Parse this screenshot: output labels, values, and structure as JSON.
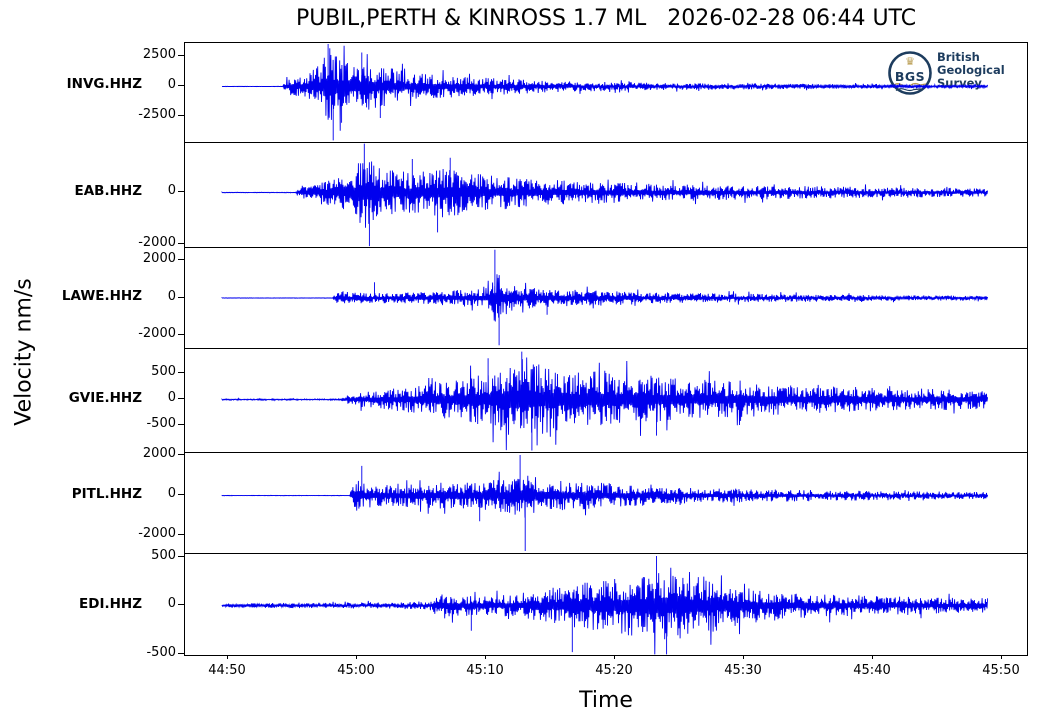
{
  "title": "PUBIL,PERTH & KINROSS 1.7 ML   2026-02-28 06:44 UTC",
  "logo": {
    "circle_abbr": "BGS",
    "lines": [
      "British",
      "Geological",
      "Survey"
    ],
    "navy": "#1d3c5e",
    "gold": "#b99c50"
  },
  "chart_data": {
    "type": "line",
    "title": "PUBIL,PERTH & KINROSS 1.7 ML   2026-02-28 06:44 UTC",
    "xlabel": "Time",
    "ylabel": "Velocity nm/s",
    "x_ticks": [
      "44:50",
      "45:00",
      "45:10",
      "45:20",
      "45:30",
      "45:40",
      "45:50"
    ],
    "grid": false,
    "trace_color": "#0000ee",
    "series": [
      {
        "name": "INVG.HHZ",
        "y_ticks": [
          2500,
          0,
          -2500
        ],
        "ylim": [
          -4580,
          3580
        ],
        "envelope": [
          [
            0.044,
            15
          ],
          [
            0.115,
            15
          ],
          [
            0.122,
            700
          ],
          [
            0.13,
            1100
          ],
          [
            0.14,
            900
          ],
          [
            0.15,
            1300
          ],
          [
            0.165,
            2000
          ],
          [
            0.172,
            3400
          ],
          [
            0.182,
            2600
          ],
          [
            0.2,
            2000
          ],
          [
            0.22,
            2100
          ],
          [
            0.245,
            1500
          ],
          [
            0.27,
            1100
          ],
          [
            0.3,
            950
          ],
          [
            0.34,
            800
          ],
          [
            0.4,
            600
          ],
          [
            0.47,
            420
          ],
          [
            0.55,
            320
          ],
          [
            0.65,
            260
          ],
          [
            0.75,
            210
          ],
          [
            0.85,
            170
          ],
          [
            0.954,
            140
          ]
        ],
        "spikes": [
          [
            0.17,
            3500
          ],
          [
            0.176,
            -4450
          ],
          [
            0.186,
            -3000
          ],
          [
            0.21,
            2800
          ],
          [
            0.232,
            -2600
          ]
        ]
      },
      {
        "name": "EAB.HHZ",
        "y_ticks": [
          0,
          -2000
        ],
        "ylim": [
          -2115,
          1923
        ],
        "envelope": [
          [
            0.044,
            12
          ],
          [
            0.13,
            12
          ],
          [
            0.14,
            350
          ],
          [
            0.16,
            450
          ],
          [
            0.18,
            600
          ],
          [
            0.2,
            900
          ],
          [
            0.212,
            1500
          ],
          [
            0.225,
            1100
          ],
          [
            0.25,
            850
          ],
          [
            0.28,
            800
          ],
          [
            0.31,
            1000
          ],
          [
            0.34,
            750
          ],
          [
            0.38,
            600
          ],
          [
            0.43,
            500
          ],
          [
            0.5,
            400
          ],
          [
            0.58,
            330
          ],
          [
            0.68,
            270
          ],
          [
            0.8,
            220
          ],
          [
            0.9,
            180
          ],
          [
            0.954,
            160
          ]
        ],
        "spikes": [
          [
            0.213,
            1900
          ],
          [
            0.219,
            -2080
          ],
          [
            0.27,
            1300
          ],
          [
            0.3,
            -1550
          ],
          [
            0.315,
            1350
          ]
        ]
      },
      {
        "name": "LAWE.HHZ",
        "y_ticks": [
          2000,
          0,
          -2000
        ],
        "ylim": [
          -2693,
          2693
        ],
        "envelope": [
          [
            0.044,
            10
          ],
          [
            0.175,
            10
          ],
          [
            0.182,
            420
          ],
          [
            0.2,
            300
          ],
          [
            0.22,
            280
          ],
          [
            0.25,
            300
          ],
          [
            0.28,
            320
          ],
          [
            0.31,
            400
          ],
          [
            0.345,
            480
          ],
          [
            0.362,
            700
          ],
          [
            0.37,
            1600
          ],
          [
            0.38,
            900
          ],
          [
            0.4,
            600
          ],
          [
            0.44,
            480
          ],
          [
            0.5,
            400
          ],
          [
            0.58,
            300
          ],
          [
            0.68,
            230
          ],
          [
            0.8,
            170
          ],
          [
            0.954,
            120
          ]
        ],
        "spikes": [
          [
            0.368,
            2600
          ],
          [
            0.373,
            -2550
          ],
          [
            0.225,
            850
          ],
          [
            0.43,
            -900
          ]
        ]
      },
      {
        "name": "GVIE.HHZ",
        "y_ticks": [
          500,
          0,
          -500
        ],
        "ylim": [
          -1019,
          981
        ],
        "envelope": [
          [
            0.044,
            14
          ],
          [
            0.185,
            14
          ],
          [
            0.195,
            130
          ],
          [
            0.22,
            170
          ],
          [
            0.25,
            220
          ],
          [
            0.285,
            330
          ],
          [
            0.32,
            400
          ],
          [
            0.355,
            500
          ],
          [
            0.385,
            700
          ],
          [
            0.405,
            850
          ],
          [
            0.43,
            650
          ],
          [
            0.46,
            520
          ],
          [
            0.5,
            560
          ],
          [
            0.545,
            480
          ],
          [
            0.59,
            420
          ],
          [
            0.64,
            360
          ],
          [
            0.7,
            300
          ],
          [
            0.77,
            260
          ],
          [
            0.85,
            220
          ],
          [
            0.954,
            190
          ]
        ],
        "spikes": [
          [
            0.4,
            930
          ],
          [
            0.412,
            -990
          ],
          [
            0.36,
            800
          ],
          [
            0.56,
            -700
          ]
        ]
      },
      {
        "name": "PITL.HHZ",
        "y_ticks": [
          2000,
          0,
          -2000
        ],
        "ylim": [
          -2900,
          2150
        ],
        "envelope": [
          [
            0.044,
            10
          ],
          [
            0.195,
            10
          ],
          [
            0.202,
            850
          ],
          [
            0.215,
            650
          ],
          [
            0.24,
            550
          ],
          [
            0.27,
            600
          ],
          [
            0.3,
            650
          ],
          [
            0.33,
            700
          ],
          [
            0.36,
            750
          ],
          [
            0.385,
            900
          ],
          [
            0.4,
            1200
          ],
          [
            0.42,
            900
          ],
          [
            0.45,
            750
          ],
          [
            0.49,
            650
          ],
          [
            0.53,
            550
          ],
          [
            0.58,
            450
          ],
          [
            0.64,
            370
          ],
          [
            0.72,
            300
          ],
          [
            0.8,
            250
          ],
          [
            0.88,
            210
          ],
          [
            0.954,
            180
          ]
        ],
        "spikes": [
          [
            0.398,
            2050
          ],
          [
            0.404,
            -2800
          ],
          [
            0.21,
            1500
          ],
          [
            0.35,
            -1300
          ]
        ]
      },
      {
        "name": "EDI.HHZ",
        "y_ticks": [
          500,
          0,
          -500
        ],
        "ylim": [
          -510,
          531
        ],
        "envelope": [
          [
            0.044,
            22
          ],
          [
            0.12,
            26
          ],
          [
            0.18,
            30
          ],
          [
            0.25,
            35
          ],
          [
            0.29,
            45
          ],
          [
            0.305,
            140
          ],
          [
            0.325,
            110
          ],
          [
            0.35,
            100
          ],
          [
            0.39,
            115
          ],
          [
            0.43,
            170
          ],
          [
            0.46,
            230
          ],
          [
            0.49,
            260
          ],
          [
            0.52,
            290
          ],
          [
            0.55,
            370
          ],
          [
            0.565,
            430
          ],
          [
            0.585,
            380
          ],
          [
            0.61,
            320
          ],
          [
            0.635,
            250
          ],
          [
            0.665,
            190
          ],
          [
            0.7,
            155
          ],
          [
            0.74,
            130
          ],
          [
            0.79,
            110
          ],
          [
            0.85,
            95
          ],
          [
            0.9,
            85
          ],
          [
            0.954,
            75
          ]
        ],
        "spikes": [
          [
            0.56,
            510
          ],
          [
            0.572,
            -515
          ],
          [
            0.34,
            -260
          ],
          [
            0.46,
            -480
          ]
        ]
      }
    ]
  }
}
